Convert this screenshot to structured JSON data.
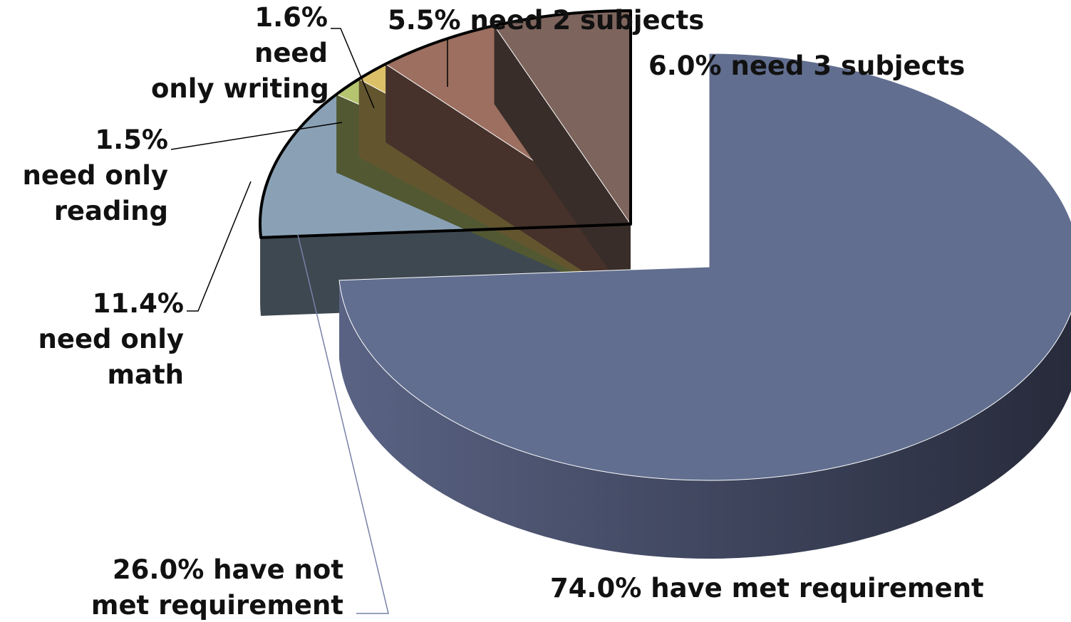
{
  "chart_data": {
    "type": "pie",
    "variant": "3d-exploded",
    "title": "",
    "slices": [
      {
        "id": "met",
        "value": 74.0,
        "pct_text": "74.0%",
        "text": "have met requirement",
        "color": "#616e8f"
      },
      {
        "id": "math",
        "value": 11.4,
        "pct_text": "11.4%",
        "text": "need only math",
        "color": "#8aa1b5"
      },
      {
        "id": "reading",
        "value": 1.5,
        "pct_text": "1.5%",
        "text": "need only reading",
        "color": "#b5c46f"
      },
      {
        "id": "writing",
        "value": 1.6,
        "pct_text": "1.6%",
        "text": "need only writing",
        "color": "#dcc068"
      },
      {
        "id": "two",
        "value": 5.5,
        "pct_text": "5.5%",
        "text": "need 2 subjects",
        "color": "#9c6f60"
      },
      {
        "id": "three",
        "value": 6.0,
        "pct_text": "6.0%",
        "text": "need 3 subjects",
        "color": "#7d645c"
      }
    ],
    "group": {
      "value": 26.0,
      "pct_text": "26.0%",
      "text": "have not met requirement",
      "members": [
        "math",
        "reading",
        "writing",
        "two",
        "three"
      ]
    }
  },
  "labels": {
    "met": {
      "l1": "74.0%  have met requirement"
    },
    "math": {
      "l1": "11.4%",
      "l2": "need only",
      "l3": "math"
    },
    "reading": {
      "l1": "1.5%",
      "l2": "need only",
      "l3": "reading"
    },
    "writing": {
      "l1": "1.6%",
      "l2": "need",
      "l3": "only writing"
    },
    "two": {
      "l1": "5.5%  need 2 subjects"
    },
    "three": {
      "l1": "6.0% need 3 subjects"
    },
    "group": {
      "l1": "26.0% have not",
      "l2": "met requirement"
    }
  }
}
